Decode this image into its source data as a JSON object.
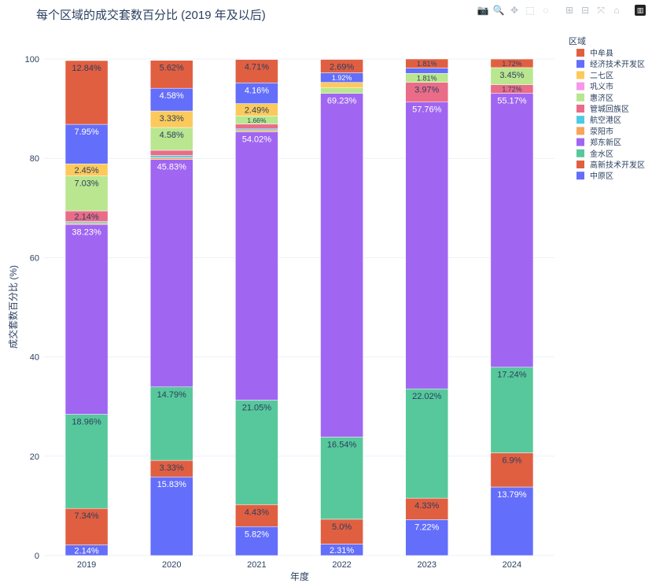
{
  "chart_data": {
    "type": "bar",
    "barmode": "stack",
    "title": "每个区域的成交套数百分比 (2019 年及以后)",
    "xlabel": "年度",
    "ylabel": "成交套数百分比 (%)",
    "ylim": [
      0,
      100
    ],
    "yticks": [
      0,
      20,
      40,
      60,
      80,
      100
    ],
    "categories": [
      "2019",
      "2020",
      "2021",
      "2022",
      "2023",
      "2024"
    ],
    "legend_title": "区域",
    "legend_position": "top-right",
    "series": [
      {
        "name": "中原区",
        "color": "#636efa",
        "values": [
          2.14,
          15.83,
          5.82,
          2.31,
          7.22,
          13.79
        ],
        "labels": [
          "2.14%",
          "15.83%",
          "5.82%",
          "2.31%",
          "7.22%",
          "13.79%"
        ]
      },
      {
        "name": "高新技术开发区",
        "color": "#e15f41",
        "values": [
          7.34,
          3.33,
          4.43,
          5.0,
          4.33,
          6.9
        ],
        "labels": [
          "7.34%",
          "3.33%",
          "4.43%",
          "5.0%",
          "4.33%",
          "6.9%"
        ]
      },
      {
        "name": "金水区",
        "color": "#57c89b",
        "values": [
          18.96,
          14.79,
          21.05,
          16.54,
          22.02,
          17.24
        ],
        "labels": [
          "18.96%",
          "14.79%",
          "21.05%",
          "16.54%",
          "22.02%",
          "17.24%"
        ]
      },
      {
        "name": "郑东新区",
        "color": "#a066f2",
        "values": [
          38.23,
          45.83,
          54.02,
          69.23,
          57.76,
          55.17
        ],
        "labels": [
          "38.23%",
          "45.83%",
          "54.02%",
          "69.23%",
          "57.76%",
          "55.17%"
        ]
      },
      {
        "name": "荥阳市",
        "color": "#f7a45c",
        "values": [
          0.3,
          0.4,
          0.3,
          0,
          0,
          0
        ],
        "labels": [
          "",
          "",
          "",
          "",
          "",
          ""
        ]
      },
      {
        "name": "航空港区",
        "color": "#4ccbe4",
        "values": [
          0.3,
          0.4,
          0.3,
          0,
          0,
          0
        ],
        "labels": [
          "",
          "",
          "",
          "",
          "",
          ""
        ]
      },
      {
        "name": "管城回族区",
        "color": "#ea6c88",
        "values": [
          2.14,
          1.04,
          0.96,
          0,
          3.97,
          1.72
        ],
        "labels": [
          "2.14%",
          "",
          "",
          "",
          "3.97%",
          "1.72%"
        ]
      },
      {
        "name": "惠济区",
        "color": "#b9e68f",
        "values": [
          7.03,
          4.58,
          1.66,
          1.11,
          1.81,
          3.45
        ],
        "labels": [
          "7.03%",
          "4.58%",
          "1.66%",
          "",
          "1.81%",
          "3.45%"
        ]
      },
      {
        "name": "巩义市",
        "color": "#f797e8",
        "values": [
          0,
          0,
          0,
          0,
          0,
          0
        ],
        "labels": [
          "",
          "",
          "",
          "",
          "",
          ""
        ]
      },
      {
        "name": "二七区",
        "color": "#fcca5c",
        "values": [
          2.45,
          3.33,
          2.49,
          1.11,
          0,
          0
        ],
        "labels": [
          "2.45%",
          "3.33%",
          "2.49%",
          "",
          "",
          ""
        ]
      },
      {
        "name": "经济技术开发区",
        "color": "#636efa",
        "values": [
          7.95,
          4.58,
          4.16,
          1.92,
          1.08,
          0
        ],
        "labels": [
          "7.95%",
          "4.58%",
          "4.16%",
          "1.92%",
          "",
          ""
        ]
      },
      {
        "name": "中牟县",
        "color": "#e15f41",
        "values": [
          12.84,
          5.62,
          4.71,
          2.69,
          1.81,
          1.72
        ],
        "labels": [
          "12.84%",
          "5.62%",
          "4.71%",
          "2.69%",
          "1.81%",
          "1.72%"
        ]
      }
    ],
    "legend_order": [
      "中牟县",
      "经济技术开发区",
      "二七区",
      "巩义市",
      "惠济区",
      "管城回族区",
      "航空港区",
      "荥阳市",
      "郑东新区",
      "金水区",
      "高新技术开发区",
      "中原区"
    ]
  },
  "modebar": {
    "buttons": [
      {
        "name": "camera-icon",
        "glyph": "📷"
      },
      {
        "name": "zoom-icon",
        "glyph": "🔍"
      },
      {
        "name": "pan-icon",
        "glyph": "✥"
      },
      {
        "name": "box-select-icon",
        "glyph": "⬚"
      },
      {
        "name": "lasso-icon",
        "glyph": "◌"
      },
      {
        "name": "zoom-in-icon",
        "glyph": "⊞"
      },
      {
        "name": "zoom-out-icon",
        "glyph": "⊟"
      },
      {
        "name": "autoscale-icon",
        "glyph": "⤧"
      },
      {
        "name": "home-icon",
        "glyph": "⌂"
      },
      {
        "name": "plotly-logo-icon",
        "glyph": "▥"
      }
    ]
  }
}
